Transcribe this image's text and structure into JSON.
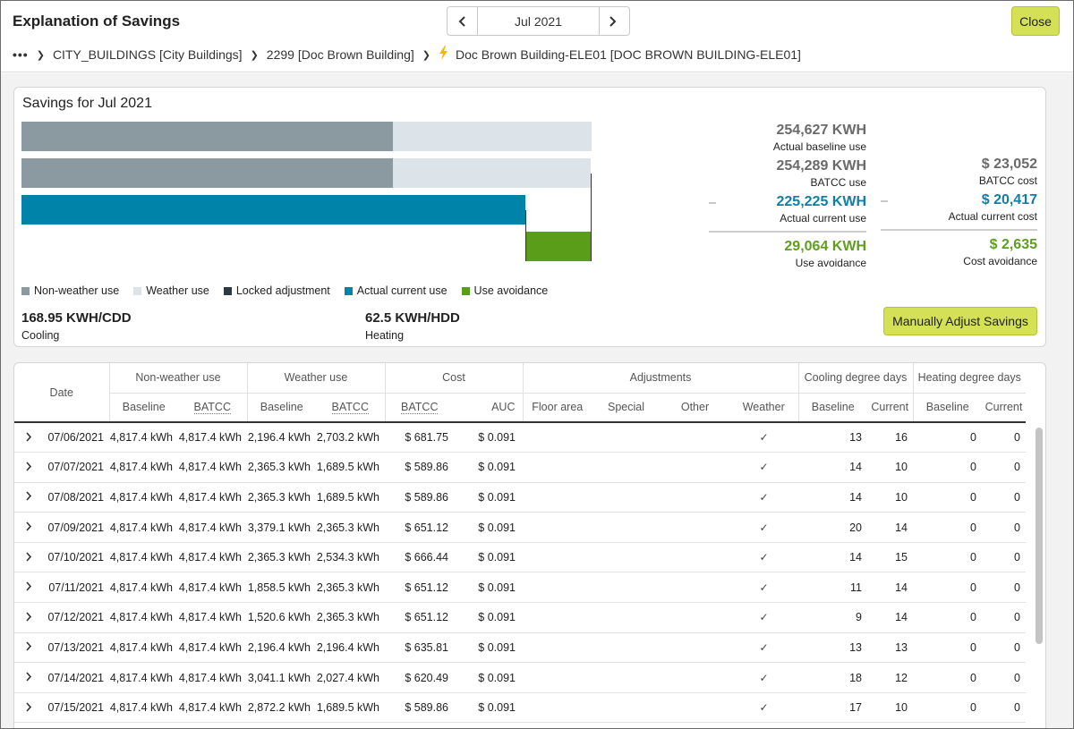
{
  "header": {
    "title": "Explanation of Savings",
    "month": "Jul 2021",
    "prev_icon": "chevron-left-icon",
    "next_icon": "chevron-right-icon",
    "close_label": "Close",
    "accent": "#d4e157"
  },
  "breadcrumb": {
    "more": "•••",
    "items": [
      "CITY_BUILDINGS [City Buildings]",
      "2299 [Doc Brown Building]",
      "Doc Brown Building-ELE01 [DOC BROWN BUILDING-ELE01]"
    ],
    "meter_icon": "lightning-bolt-icon"
  },
  "savings": {
    "title": "Savings for Jul 2021",
    "colors": {
      "non_weather": "#8b9aa1",
      "weather": "#dde4e9",
      "locked": "#2c3a45",
      "actual_current": "#0083a9",
      "avoidance": "#5a9d18"
    },
    "bars": {
      "actual_baseline_total": 254627,
      "baseline_non_weather_fraction": 0.652,
      "batcc_total": 254289,
      "actual_current": 225225,
      "avoidance": 29064
    },
    "use_stats": [
      {
        "value": "254,627 KWH",
        "label": "Actual baseline use"
      },
      {
        "value": "254,289 KWH",
        "label": "BATCC use"
      },
      {
        "value": "225,225 KWH",
        "label": "Actual current use"
      },
      {
        "value": "29,064 KWH",
        "label": "Use avoidance"
      }
    ],
    "cost_stats": [
      {
        "value": "$ 23,052",
        "label": "BATCC cost"
      },
      {
        "value": "$ 20,417",
        "label": "Actual current cost"
      },
      {
        "value": "$ 2,635",
        "label": "Cost avoidance"
      }
    ],
    "legend": [
      "Non-weather use",
      "Weather use",
      "Locked adjustment",
      "Actual current use",
      "Use avoidance"
    ],
    "cooling": {
      "value": "168.95 KWH/CDD",
      "label": "Cooling"
    },
    "heating": {
      "value": "62.5 KWH/HDD",
      "label": "Heating"
    },
    "adjust_label": "Manually Adjust Savings"
  },
  "table": {
    "groups": [
      "Date",
      "Non-weather use",
      "Weather use",
      "Cost",
      "Adjustments",
      "Cooling degree days",
      "Heating degree days"
    ],
    "subheaders": [
      "Baseline",
      "BATCC",
      "Baseline",
      "BATCC",
      "BATCC",
      "AUC",
      "Floor area",
      "Special",
      "Other",
      "Weather",
      "Baseline",
      "Current",
      "Baseline",
      "Current"
    ],
    "check_icon": "checkmark-icon",
    "expand_icon": "chevron-right-icon",
    "rows": [
      {
        "date": "07/06/2021",
        "nw_base": "4,817.4 kWh",
        "nw_batcc": "4,817.4 kWh",
        "w_base": "2,196.4 kWh",
        "w_batcc": "2,703.2 kWh",
        "cost": "$ 681.75",
        "auc": "$ 0.091",
        "check": "✓",
        "cdd_base": "13",
        "cdd_cur": "16",
        "hdd_base": "0",
        "hdd_cur": "0"
      },
      {
        "date": "07/07/2021",
        "nw_base": "4,817.4 kWh",
        "nw_batcc": "4,817.4 kWh",
        "w_base": "2,365.3 kWh",
        "w_batcc": "1,689.5 kWh",
        "cost": "$ 589.86",
        "auc": "$ 0.091",
        "check": "✓",
        "cdd_base": "14",
        "cdd_cur": "10",
        "hdd_base": "0",
        "hdd_cur": "0"
      },
      {
        "date": "07/08/2021",
        "nw_base": "4,817.4 kWh",
        "nw_batcc": "4,817.4 kWh",
        "w_base": "2,365.3 kWh",
        "w_batcc": "1,689.5 kWh",
        "cost": "$ 589.86",
        "auc": "$ 0.091",
        "check": "✓",
        "cdd_base": "14",
        "cdd_cur": "10",
        "hdd_base": "0",
        "hdd_cur": "0"
      },
      {
        "date": "07/09/2021",
        "nw_base": "4,817.4 kWh",
        "nw_batcc": "4,817.4 kWh",
        "w_base": "3,379.1 kWh",
        "w_batcc": "2,365.3 kWh",
        "cost": "$ 651.12",
        "auc": "$ 0.091",
        "check": "✓",
        "cdd_base": "20",
        "cdd_cur": "14",
        "hdd_base": "0",
        "hdd_cur": "0"
      },
      {
        "date": "07/10/2021",
        "nw_base": "4,817.4 kWh",
        "nw_batcc": "4,817.4 kWh",
        "w_base": "2,365.3 kWh",
        "w_batcc": "2,534.3 kWh",
        "cost": "$ 666.44",
        "auc": "$ 0.091",
        "check": "✓",
        "cdd_base": "14",
        "cdd_cur": "15",
        "hdd_base": "0",
        "hdd_cur": "0"
      },
      {
        "date": "07/11/2021",
        "nw_base": "4,817.4 kWh",
        "nw_batcc": "4,817.4 kWh",
        "w_base": "1,858.5 kWh",
        "w_batcc": "2,365.3 kWh",
        "cost": "$ 651.12",
        "auc": "$ 0.091",
        "check": "✓",
        "cdd_base": "11",
        "cdd_cur": "14",
        "hdd_base": "0",
        "hdd_cur": "0"
      },
      {
        "date": "07/12/2021",
        "nw_base": "4,817.4 kWh",
        "nw_batcc": "4,817.4 kWh",
        "w_base": "1,520.6 kWh",
        "w_batcc": "2,365.3 kWh",
        "cost": "$ 651.12",
        "auc": "$ 0.091",
        "check": "✓",
        "cdd_base": "9",
        "cdd_cur": "14",
        "hdd_base": "0",
        "hdd_cur": "0"
      },
      {
        "date": "07/13/2021",
        "nw_base": "4,817.4 kWh",
        "nw_batcc": "4,817.4 kWh",
        "w_base": "2,196.4 kWh",
        "w_batcc": "2,196.4 kWh",
        "cost": "$ 635.81",
        "auc": "$ 0.091",
        "check": "✓",
        "cdd_base": "13",
        "cdd_cur": "13",
        "hdd_base": "0",
        "hdd_cur": "0"
      },
      {
        "date": "07/14/2021",
        "nw_base": "4,817.4 kWh",
        "nw_batcc": "4,817.4 kWh",
        "w_base": "3,041.1 kWh",
        "w_batcc": "2,027.4 kWh",
        "cost": "$ 620.49",
        "auc": "$ 0.091",
        "check": "✓",
        "cdd_base": "18",
        "cdd_cur": "12",
        "hdd_base": "0",
        "hdd_cur": "0"
      },
      {
        "date": "07/15/2021",
        "nw_base": "4,817.4 kWh",
        "nw_batcc": "4,817.4 kWh",
        "w_base": "2,872.2 kWh",
        "w_batcc": "1,689.5 kWh",
        "cost": "$ 589.86",
        "auc": "$ 0.091",
        "check": "✓",
        "cdd_base": "17",
        "cdd_cur": "10",
        "hdd_base": "0",
        "hdd_cur": "0"
      }
    ]
  }
}
